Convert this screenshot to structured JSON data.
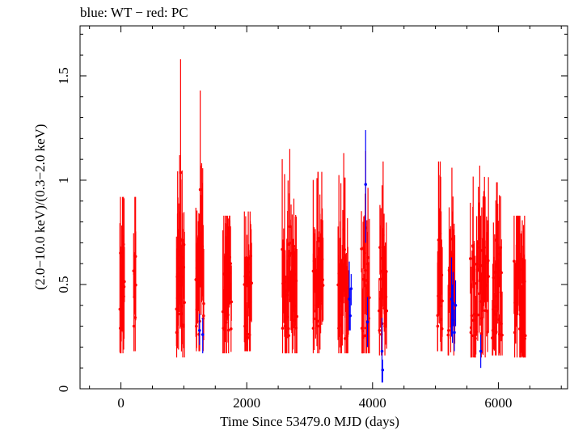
{
  "chart_data": {
    "type": "scatter",
    "title": "blue: WT − red: PC",
    "xlabel": "Time Since 53479.0 MJD (days)",
    "ylabel": "(2.0−10.0 keV)/(0.3−2.0 keV)",
    "xlim": [
      -650,
      7100
    ],
    "ylim": [
      0,
      1.74
    ],
    "x_ticks": [
      {
        "value": 0,
        "label": "0"
      },
      {
        "value": 2000,
        "label": "2000"
      },
      {
        "value": 4000,
        "label": "4000"
      },
      {
        "value": 6000,
        "label": "6000"
      }
    ],
    "y_ticks": [
      {
        "value": 0,
        "label": "0"
      },
      {
        "value": 0.5,
        "label": "0.5"
      },
      {
        "value": 1,
        "label": "1"
      },
      {
        "value": 1.5,
        "label": "1.5"
      }
    ],
    "colors": {
      "PC": "#ff0000",
      "WT": "#0000ff"
    },
    "series": [
      {
        "name": "PC",
        "clusters": [
          {
            "x": [
              -20,
              60
            ],
            "y_range": [
              0.17,
              0.92
            ],
            "n": 14
          },
          {
            "x": [
              200,
              240
            ],
            "y_range": [
              0.18,
              0.92
            ],
            "n": 8
          },
          {
            "x": [
              880,
              1010
            ],
            "y_range": [
              0.15,
              1.58
            ],
            "n": 26
          },
          {
            "x": [
              1190,
              1320
            ],
            "y_range": [
              0.18,
              1.43
            ],
            "n": 24
          },
          {
            "x": [
              1620,
              1760
            ],
            "y_range": [
              0.17,
              0.83
            ],
            "n": 20
          },
          {
            "x": [
              1960,
              2080
            ],
            "y_range": [
              0.18,
              0.85
            ],
            "n": 20
          },
          {
            "x": [
              2560,
              2800
            ],
            "y_range": [
              0.17,
              1.15
            ],
            "n": 34
          },
          {
            "x": [
              3050,
              3220
            ],
            "y_range": [
              0.17,
              1.04
            ],
            "n": 24
          },
          {
            "x": [
              3450,
              3620
            ],
            "y_range": [
              0.17,
              1.13
            ],
            "n": 24
          },
          {
            "x": [
              3820,
              3950
            ],
            "y_range": [
              0.17,
              1.14
            ],
            "n": 22
          },
          {
            "x": [
              4100,
              4230
            ],
            "y_range": [
              0.16,
              1.09
            ],
            "n": 20
          },
          {
            "x": [
              5030,
              5110
            ],
            "y_range": [
              0.18,
              1.09
            ],
            "n": 16
          },
          {
            "x": [
              5200,
              5310
            ],
            "y_range": [
              0.16,
              1.06
            ],
            "n": 16
          },
          {
            "x": [
              5550,
              5850
            ],
            "y_range": [
              0.15,
              1.07
            ],
            "n": 40
          },
          {
            "x": [
              5900,
              6060
            ],
            "y_range": [
              0.16,
              0.99
            ],
            "n": 26
          },
          {
            "x": [
              6250,
              6430
            ],
            "y_range": [
              0.15,
              0.83
            ],
            "n": 30
          }
        ]
      },
      {
        "name": "WT",
        "points": [
          {
            "x": 1250,
            "y": 0.28,
            "lo": 0.21,
            "hi": 0.36
          },
          {
            "x": 1300,
            "y": 0.26,
            "lo": 0.17,
            "hi": 0.34
          },
          {
            "x": 3630,
            "y": 0.43,
            "lo": 0.28,
            "hi": 0.61
          },
          {
            "x": 3645,
            "y": 0.35,
            "lo": 0.28,
            "hi": 0.48
          },
          {
            "x": 3660,
            "y": 0.48,
            "lo": 0.4,
            "hi": 0.55
          },
          {
            "x": 3890,
            "y": 0.98,
            "lo": 0.7,
            "hi": 1.24
          },
          {
            "x": 3920,
            "y": 0.32,
            "lo": 0.2,
            "hi": 0.44
          },
          {
            "x": 4150,
            "y": 0.18,
            "lo": 0.03,
            "hi": 0.34
          },
          {
            "x": 4160,
            "y": 0.09,
            "lo": 0.03,
            "hi": 0.14
          },
          {
            "x": 5255,
            "y": 0.43,
            "lo": 0.25,
            "hi": 0.63
          },
          {
            "x": 5270,
            "y": 0.33,
            "lo": 0.22,
            "hi": 0.5
          },
          {
            "x": 5280,
            "y": 0.41,
            "lo": 0.3,
            "hi": 0.56
          },
          {
            "x": 5300,
            "y": 0.27,
            "lo": 0.18,
            "hi": 0.38
          },
          {
            "x": 5320,
            "y": 0.4,
            "lo": 0.3,
            "hi": 0.52
          },
          {
            "x": 5720,
            "y": 0.18,
            "lo": 0.1,
            "hi": 0.26
          }
        ]
      }
    ]
  }
}
